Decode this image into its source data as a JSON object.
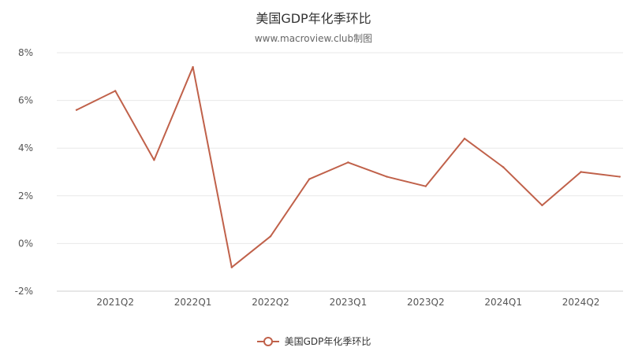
{
  "chart_data": {
    "type": "line",
    "title": "美国GDP年化季环比",
    "subtitle": "www.macroview.club制图",
    "y_ticks": [
      "-2%",
      "0%",
      "2%",
      "4%",
      "6%",
      "8%"
    ],
    "x_tick_labels": [
      "2021Q2",
      "2022Q1",
      "2022Q2",
      "2023Q1",
      "2023Q2",
      "2024Q1",
      "2024Q2"
    ],
    "ylim": [
      -2,
      8
    ],
    "grid": true,
    "legend_position": "bottom",
    "series": [
      {
        "name": "美国GDP年化季环比",
        "color": "#c0614a",
        "values": [
          5.6,
          6.4,
          3.5,
          7.4,
          -1.0,
          0.3,
          2.7,
          3.4,
          2.8,
          2.4,
          4.4,
          3.2,
          1.6,
          3.0,
          2.8
        ]
      }
    ]
  }
}
